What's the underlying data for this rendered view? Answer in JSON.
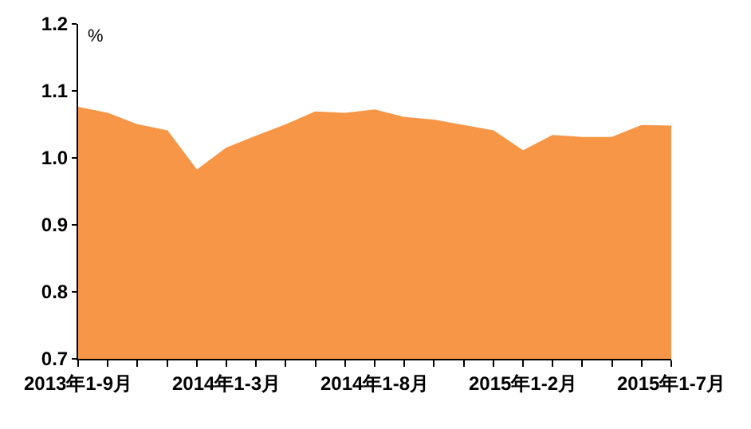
{
  "chart_data": {
    "type": "area",
    "ylabel": "%",
    "categories": [
      "2013年1-9月",
      null,
      null,
      null,
      null,
      "2014年1-3月",
      null,
      null,
      null,
      null,
      "2014年1-8月",
      null,
      null,
      null,
      null,
      "2015年1-2月",
      null,
      null,
      null,
      null,
      "2015年1-7月"
    ],
    "values": [
      1.075,
      1.066,
      1.049,
      1.04,
      0.981,
      1.014,
      1.032,
      1.049,
      1.068,
      1.066,
      1.071,
      1.06,
      1.056,
      1.048,
      1.04,
      1.01,
      1.033,
      1.03,
      1.03,
      1.048,
      1.047
    ],
    "color": "#f79646",
    "ylim": [
      0.7,
      1.2
    ],
    "yticks": [
      0.7,
      0.8,
      0.9,
      {
        "value": 1,
        "label": "1.0"
      },
      1.1,
      1.2
    ]
  }
}
